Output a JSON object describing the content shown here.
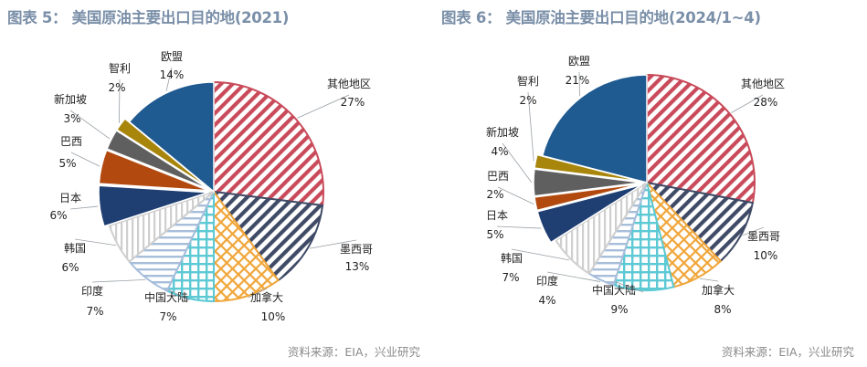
{
  "charts": [
    {
      "title": "图表 5：  美国原油主要出口目的地(2021)",
      "source": "资料来源：EIA，兴业研究"
    },
    {
      "title": "图表 6：  美国原油主要出口目的地(2024/1~4)",
      "source": "资料来源：EIA，兴业研究"
    }
  ],
  "chart_data": [
    {
      "type": "pie",
      "title": "图表 5：  美国原油主要出口目的地(2021)",
      "categories": [
        "其他地区",
        "墨西哥",
        "加拿大",
        "中国大陆",
        "印度",
        "韩国",
        "日本",
        "巴西",
        "新加坡",
        "智利",
        "欧盟"
      ],
      "values": [
        27,
        13,
        10,
        7,
        7,
        6,
        6,
        5,
        3,
        2,
        14
      ],
      "value_labels": [
        "27%",
        "13%",
        "10%",
        "7%",
        "7%",
        "6%",
        "6%",
        "5%",
        "3%",
        "2%",
        "14%"
      ],
      "fills": [
        {
          "pattern": "diagonal",
          "color": "#c94a5a"
        },
        {
          "pattern": "diagonal",
          "color": "#3f4a66"
        },
        {
          "pattern": "crosshatch",
          "color": "#f0a63a"
        },
        {
          "pattern": "grid",
          "color": "#5cc9d4"
        },
        {
          "pattern": "horizontal",
          "color": "#a7bedb"
        },
        {
          "pattern": "vertical",
          "color": "#cfcfcf"
        },
        {
          "pattern": "solid",
          "color": "#1f3f73"
        },
        {
          "pattern": "solid",
          "color": "#b24a10"
        },
        {
          "pattern": "solid",
          "color": "#5f5f5f"
        },
        {
          "pattern": "solid",
          "color": "#a8860c"
        },
        {
          "pattern": "solid",
          "color": "#1f5a91"
        }
      ],
      "exploded": [
        false,
        false,
        false,
        false,
        false,
        false,
        true,
        true,
        true,
        true,
        false
      ]
    },
    {
      "type": "pie",
      "title": "图表 6：  美国原油主要出口目的地(2024/1~4)",
      "categories": [
        "其他地区",
        "墨西哥",
        "加拿大",
        "中国大陆",
        "印度",
        "韩国",
        "日本",
        "巴西",
        "新加坡",
        "智利",
        "欧盟"
      ],
      "values": [
        28,
        10,
        8,
        9,
        4,
        7,
        5,
        2,
        4,
        2,
        21
      ],
      "value_labels": [
        "28%",
        "10%",
        "8%",
        "9%",
        "4%",
        "7%",
        "5%",
        "2%",
        "4%",
        "2%",
        "21%"
      ],
      "fills": [
        {
          "pattern": "diagonal",
          "color": "#c94a5a"
        },
        {
          "pattern": "diagonal",
          "color": "#3f4a66"
        },
        {
          "pattern": "crosshatch",
          "color": "#f0a63a"
        },
        {
          "pattern": "grid",
          "color": "#5cc9d4"
        },
        {
          "pattern": "horizontal",
          "color": "#a7bedb"
        },
        {
          "pattern": "vertical",
          "color": "#cfcfcf"
        },
        {
          "pattern": "solid",
          "color": "#1f3f73"
        },
        {
          "pattern": "solid",
          "color": "#b24a10"
        },
        {
          "pattern": "solid",
          "color": "#5f5f5f"
        },
        {
          "pattern": "solid",
          "color": "#a8860c"
        },
        {
          "pattern": "solid",
          "color": "#1f5a91"
        }
      ],
      "exploded": [
        false,
        false,
        false,
        false,
        false,
        false,
        true,
        true,
        true,
        true,
        false
      ]
    }
  ]
}
